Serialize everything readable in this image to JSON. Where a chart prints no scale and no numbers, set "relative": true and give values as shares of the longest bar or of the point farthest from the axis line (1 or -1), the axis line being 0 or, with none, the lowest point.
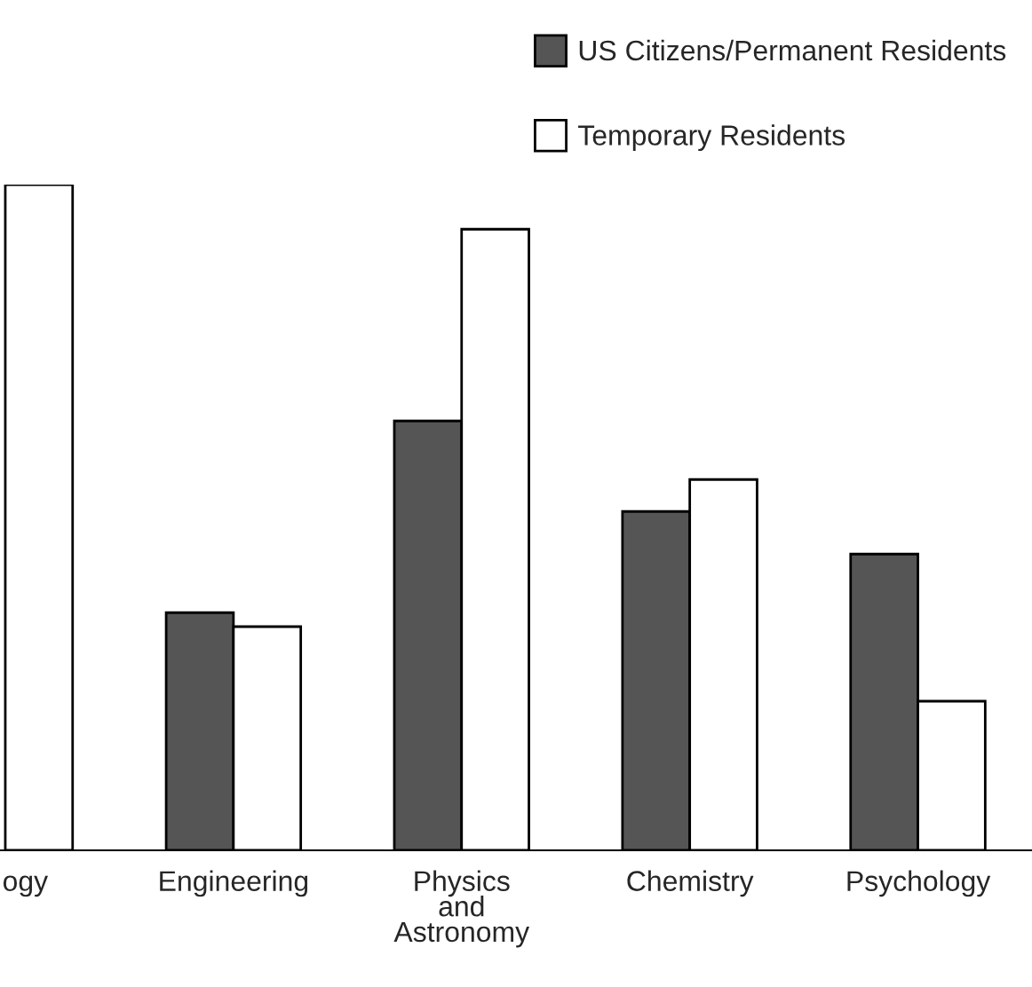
{
  "chart_data": {
    "type": "bar",
    "relative": true,
    "categories": [
      "ogy",
      "Engineering",
      "Physics\nand\nAstronomy",
      "Chemistry",
      "Psychology"
    ],
    "series": [
      {
        "name": "US Citizens/Permanent Residents",
        "color": "#555555",
        "values": [
          null,
          0.357,
          0.645,
          0.509,
          0.445
        ]
      },
      {
        "name": "Temporary Residents",
        "color": "#ffffff",
        "values": [
          1.0,
          0.336,
          0.933,
          0.557,
          0.224
        ]
      }
    ],
    "legend": "top right",
    "grid": false
  }
}
